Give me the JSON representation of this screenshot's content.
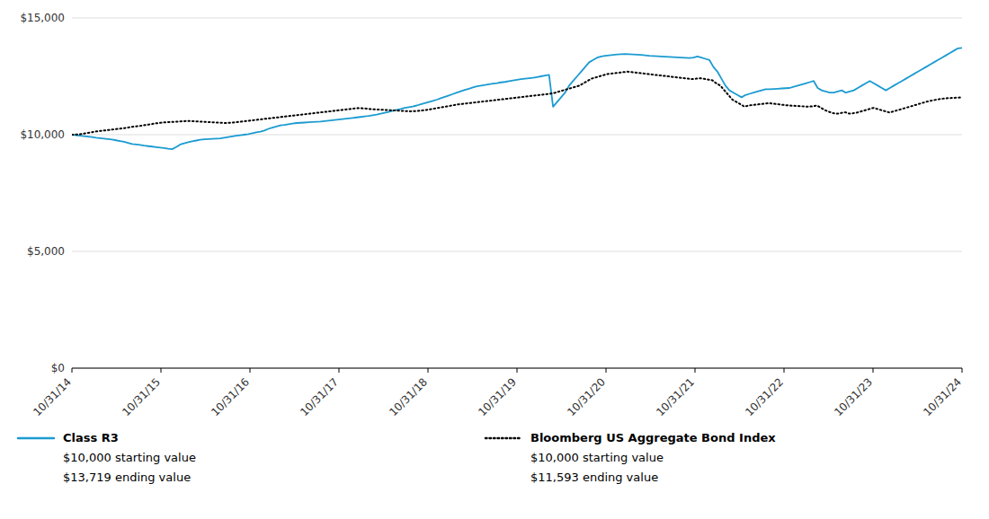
{
  "chart_data": {
    "type": "line",
    "xlim": [
      0,
      10
    ],
    "xticks": [
      {
        "value": 0,
        "label": "10/31/14"
      },
      {
        "value": 1,
        "label": "10/31/15"
      },
      {
        "value": 2,
        "label": "10/31/16"
      },
      {
        "value": 3,
        "label": "10/31/17"
      },
      {
        "value": 4,
        "label": "10/31/18"
      },
      {
        "value": 5,
        "label": "10/31/19"
      },
      {
        "value": 6,
        "label": "10/31/20"
      },
      {
        "value": 7,
        "label": "10/31/21"
      },
      {
        "value": 8,
        "label": "10/31/22"
      },
      {
        "value": 9,
        "label": "10/31/23"
      },
      {
        "value": 10,
        "label": "10/31/24"
      }
    ],
    "ylim": [
      0,
      15000
    ],
    "yticks": [
      {
        "value": 0,
        "label": "$0"
      },
      {
        "value": 5000,
        "label": "$5,000"
      },
      {
        "value": 10000,
        "label": "$10,000"
      },
      {
        "value": 15000,
        "label": "$15,000"
      }
    ],
    "grid": true,
    "legend": "bottom",
    "annotations": [
      "$10,000 starting value",
      "$13,719 ending value",
      "$10,000 starting value",
      "$11,593 ending value"
    ],
    "series": [
      {
        "name": "Class R3",
        "color": "#1B9BD1",
        "line_style": "solid",
        "values": [
          10000,
          9980,
          9960,
          9940,
          9920,
          9900,
          9870,
          9850,
          9830,
          9810,
          9790,
          9760,
          9730,
          9700,
          9650,
          9600,
          9580,
          9560,
          9530,
          9510,
          9490,
          9470,
          9450,
          9430,
          9400,
          9380,
          9470,
          9580,
          9630,
          9680,
          9720,
          9750,
          9780,
          9800,
          9810,
          9820,
          9830,
          9840,
          9870,
          9900,
          9930,
          9960,
          9980,
          10000,
          10020,
          10060,
          10100,
          10130,
          10180,
          10250,
          10300,
          10350,
          10400,
          10420,
          10450,
          10480,
          10500,
          10510,
          10520,
          10530,
          10540,
          10550,
          10560,
          10580,
          10600,
          10620,
          10640,
          10660,
          10680,
          10700,
          10720,
          10740,
          10760,
          10780,
          10800,
          10830,
          10860,
          10900,
          10940,
          10980,
          11020,
          11060,
          11100,
          11150,
          11180,
          11210,
          11250,
          11300,
          11350,
          11400,
          11450,
          11500,
          11560,
          11620,
          11680,
          11740,
          11800,
          11860,
          11920,
          11970,
          12020,
          12070,
          12100,
          12130,
          12160,
          12190,
          12210,
          12240,
          12260,
          12290,
          12320,
          12350,
          12380,
          12400,
          12420,
          12440,
          12470,
          12500,
          12530,
          12560,
          11200,
          11400,
          11600,
          11800,
          12100,
          12300,
          12500,
          12700,
          12900,
          13100,
          13200,
          13300,
          13350,
          13380,
          13400,
          13420,
          13440,
          13450,
          13460,
          13450,
          13440,
          13430,
          13420,
          13400,
          13380,
          13370,
          13360,
          13350,
          13340,
          13330,
          13320,
          13310,
          13300,
          13290,
          13280,
          13300,
          13350,
          13300,
          13250,
          13200,
          12900,
          12700,
          12400,
          12100,
          11900,
          11800,
          11700,
          11600,
          11700,
          11750,
          11800,
          11850,
          11900,
          11950,
          11950,
          11960,
          11970,
          11980,
          11990,
          12000,
          12050,
          12100,
          12150,
          12200,
          12250,
          12300,
          12000,
          11900,
          11850,
          11800,
          11800,
          11850,
          11900,
          11800,
          11850,
          11900,
          12000,
          12100,
          12200,
          12300,
          12200,
          12100,
          12000,
          11900,
          12000,
          12100,
          12200,
          12300,
          12400,
          12500,
          12600,
          12700,
          12800,
          12900,
          13000,
          13100,
          13200,
          13300,
          13400,
          13500,
          13600,
          13700,
          13719
        ]
      },
      {
        "name": "Bloomberg US Aggregate Bond Index",
        "color": "#000000",
        "line_style": "dotted",
        "values": [
          10000,
          10010,
          10020,
          10050,
          10080,
          10110,
          10140,
          10160,
          10180,
          10200,
          10220,
          10240,
          10260,
          10280,
          10310,
          10340,
          10360,
          10380,
          10410,
          10430,
          10460,
          10490,
          10510,
          10530,
          10540,
          10550,
          10560,
          10570,
          10580,
          10590,
          10580,
          10570,
          10560,
          10550,
          10540,
          10530,
          10520,
          10510,
          10500,
          10510,
          10520,
          10540,
          10560,
          10580,
          10600,
          10620,
          10640,
          10660,
          10680,
          10700,
          10720,
          10740,
          10760,
          10780,
          10800,
          10820,
          10840,
          10860,
          10880,
          10900,
          10920,
          10940,
          10960,
          10980,
          11000,
          11020,
          11040,
          11060,
          11080,
          11100,
          11120,
          11140,
          11130,
          11120,
          11100,
          11090,
          11080,
          11070,
          11060,
          11050,
          11040,
          11030,
          11020,
          11010,
          11000,
          11010,
          11020,
          11040,
          11060,
          11090,
          11120,
          11150,
          11180,
          11210,
          11240,
          11270,
          11300,
          11320,
          11340,
          11360,
          11380,
          11400,
          11420,
          11440,
          11460,
          11480,
          11500,
          11520,
          11540,
          11560,
          11580,
          11600,
          11620,
          11640,
          11660,
          11680,
          11700,
          11720,
          11740,
          11760,
          11800,
          11850,
          11900,
          11950,
          12000,
          12050,
          12100,
          12200,
          12300,
          12400,
          12450,
          12500,
          12550,
          12600,
          12620,
          12640,
          12660,
          12680,
          12700,
          12680,
          12660,
          12640,
          12620,
          12600,
          12580,
          12560,
          12540,
          12520,
          12500,
          12480,
          12460,
          12440,
          12420,
          12400,
          12380,
          12400,
          12420,
          12390,
          12360,
          12330,
          12200,
          12100,
          11900,
          11700,
          11500,
          11400,
          11300,
          11200,
          11250,
          11270,
          11290,
          11310,
          11330,
          11350,
          11330,
          11310,
          11290,
          11270,
          11250,
          11240,
          11230,
          11220,
          11210,
          11200,
          11220,
          11250,
          11150,
          11050,
          10980,
          10920,
          10900,
          10930,
          10960,
          10900,
          10920,
          10950,
          11000,
          11050,
          11100,
          11150,
          11100,
          11050,
          11000,
          10950,
          11000,
          11050,
          11100,
          11150,
          11200,
          11250,
          11300,
          11350,
          11400,
          11450,
          11480,
          11510,
          11540,
          11560,
          11570,
          11580,
          11590,
          11593
        ]
      }
    ]
  }
}
